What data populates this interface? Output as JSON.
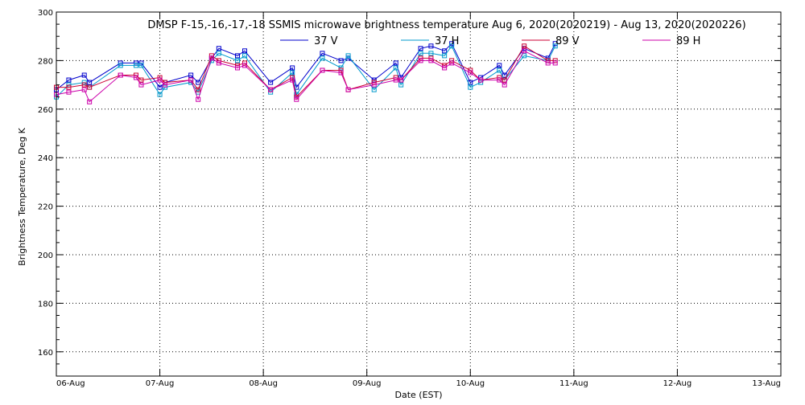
{
  "chart_data": {
    "type": "line",
    "title": "DMSP F-15,-16,-17,-18 SSMIS microwave brightness temperature Aug  6, 2020(2020219) - Aug 13, 2020(2020226)",
    "xlabel": "Date (EST)",
    "ylabel": "Brightness Temperature, Deg K",
    "xlim": [
      0,
      7
    ],
    "ylim": [
      150,
      300
    ],
    "x_ticks": [
      0,
      1,
      2,
      3,
      4,
      5,
      6,
      7
    ],
    "x_tick_labels": [
      "06-Aug",
      "07-Aug",
      "08-Aug",
      "09-Aug",
      "10-Aug",
      "11-Aug",
      "12-Aug",
      "13-Aug"
    ],
    "y_ticks": [
      160,
      180,
      200,
      220,
      240,
      260,
      280,
      300
    ],
    "y_tick_labels": [
      "160",
      "180",
      "200",
      "220",
      "240",
      "260",
      "280",
      "300"
    ],
    "grid": true,
    "legend_position": "top",
    "marker": "square",
    "series": [
      {
        "name": "37 V",
        "color": "#0000cc",
        "x": [
          0.0,
          0.12,
          0.27,
          0.32,
          0.62,
          0.77,
          0.82,
          1.0,
          1.05,
          1.3,
          1.37,
          1.5,
          1.57,
          1.75,
          1.82,
          2.07,
          2.28,
          2.32,
          2.57,
          2.75,
          2.82,
          3.07,
          3.28,
          3.33,
          3.52,
          3.62,
          3.75,
          3.82,
          4.0,
          4.1,
          4.28,
          4.33,
          4.52,
          4.75,
          4.82
        ],
        "y": [
          268,
          272,
          274,
          271,
          279,
          279,
          279,
          269,
          271,
          274,
          271,
          281,
          285,
          282,
          284,
          271,
          277,
          269,
          283,
          280,
          281,
          272,
          279,
          273,
          285,
          286,
          284,
          287,
          271,
          273,
          278,
          274,
          285,
          281,
          287
        ]
      },
      {
        "name": "37 H",
        "color": "#0099cc",
        "x": [
          0.0,
          0.12,
          0.27,
          0.32,
          0.62,
          0.77,
          0.82,
          1.0,
          1.05,
          1.3,
          1.37,
          1.5,
          1.57,
          1.75,
          1.82,
          2.07,
          2.28,
          2.32,
          2.57,
          2.75,
          2.82,
          3.07,
          3.28,
          3.33,
          3.52,
          3.62,
          3.75,
          3.82,
          4.0,
          4.1,
          4.28,
          4.33,
          4.52,
          4.75,
          4.82
        ],
        "y": [
          265,
          270,
          271,
          269,
          278,
          278,
          278,
          266,
          269,
          271,
          267,
          280,
          283,
          280,
          282,
          267,
          275,
          266,
          281,
          277,
          282,
          268,
          277,
          270,
          283,
          283,
          282,
          286,
          269,
          271,
          276,
          272,
          282,
          280,
          286
        ]
      },
      {
        "name": "89 V",
        "color": "#cc0033",
        "x": [
          0.0,
          0.12,
          0.27,
          0.32,
          0.62,
          0.77,
          0.82,
          1.0,
          1.05,
          1.3,
          1.37,
          1.5,
          1.57,
          1.75,
          1.82,
          2.07,
          2.28,
          2.32,
          2.57,
          2.75,
          2.82,
          3.07,
          3.28,
          3.33,
          3.52,
          3.62,
          3.75,
          3.82,
          4.0,
          4.1,
          4.28,
          4.33,
          4.52,
          4.75,
          4.82
        ],
        "y": [
          269,
          269,
          270,
          269,
          274,
          274,
          272,
          273,
          271,
          272,
          268,
          282,
          280,
          278,
          279,
          268,
          273,
          265,
          276,
          276,
          268,
          271,
          273,
          272,
          281,
          281,
          278,
          280,
          276,
          272,
          273,
          272,
          286,
          280,
          280
        ]
      },
      {
        "name": "89 H",
        "color": "#cc00aa",
        "x": [
          0.0,
          0.12,
          0.27,
          0.32,
          0.62,
          0.77,
          0.82,
          1.0,
          1.05,
          1.3,
          1.37,
          1.5,
          1.57,
          1.75,
          1.82,
          2.07,
          2.28,
          2.32,
          2.57,
          2.75,
          2.82,
          3.07,
          3.28,
          3.33,
          3.52,
          3.62,
          3.75,
          3.82,
          4.0,
          4.1,
          4.28,
          4.33,
          4.52,
          4.75,
          4.82
        ],
        "y": [
          266,
          267,
          268,
          263,
          274,
          273,
          270,
          272,
          270,
          272,
          264,
          281,
          279,
          277,
          278,
          268,
          272,
          264,
          276,
          275,
          268,
          270,
          272,
          272,
          280,
          280,
          277,
          279,
          275,
          272,
          272,
          270,
          284,
          279,
          279
        ]
      }
    ]
  }
}
